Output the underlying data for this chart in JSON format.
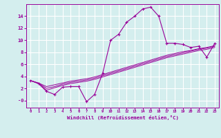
{
  "x_data": [
    0,
    1,
    2,
    3,
    4,
    5,
    6,
    7,
    8,
    9,
    10,
    11,
    12,
    13,
    14,
    15,
    16,
    17,
    18,
    19,
    20,
    21,
    22,
    23
  ],
  "line1_y": [
    3.3,
    2.8,
    1.5,
    1.0,
    2.2,
    2.3,
    2.3,
    -0.2,
    1.0,
    4.5,
    10.0,
    11.0,
    13.0,
    14.0,
    15.2,
    15.5,
    14.0,
    9.5,
    9.5,
    9.3,
    8.8,
    9.0,
    7.2,
    9.5
  ],
  "line2_y": [
    3.3,
    2.9,
    2.3,
    2.6,
    2.9,
    3.2,
    3.4,
    3.6,
    3.9,
    4.3,
    4.7,
    5.1,
    5.5,
    5.9,
    6.3,
    6.7,
    7.1,
    7.5,
    7.8,
    8.1,
    8.3,
    8.6,
    8.8,
    9.1
  ],
  "line3_y": [
    3.3,
    2.85,
    2.0,
    2.3,
    2.7,
    3.0,
    3.2,
    3.4,
    3.7,
    4.1,
    4.5,
    4.9,
    5.3,
    5.7,
    6.1,
    6.5,
    6.9,
    7.3,
    7.6,
    7.9,
    8.2,
    8.5,
    8.7,
    9.0
  ],
  "line4_y": [
    3.3,
    2.8,
    1.7,
    2.1,
    2.5,
    2.8,
    3.0,
    3.2,
    3.5,
    3.9,
    4.3,
    4.7,
    5.1,
    5.5,
    5.9,
    6.3,
    6.7,
    7.1,
    7.4,
    7.7,
    8.0,
    8.3,
    8.5,
    8.8
  ],
  "color": "#990099",
  "bg_color": "#d4eeee",
  "grid_color": "#ffffff",
  "xlabel": "Windchill (Refroidissement éolien,°C)",
  "xlim": [
    -0.5,
    23.5
  ],
  "ylim": [
    -1.2,
    16.0
  ],
  "yticks": [
    0,
    2,
    4,
    6,
    8,
    10,
    12,
    14
  ],
  "ytick_labels": [
    "-0",
    "2",
    "4",
    "6",
    "8",
    "10",
    "12",
    "14"
  ],
  "xticks": [
    0,
    1,
    2,
    3,
    4,
    5,
    6,
    7,
    8,
    9,
    10,
    11,
    12,
    13,
    14,
    15,
    16,
    17,
    18,
    19,
    20,
    21,
    22,
    23
  ]
}
